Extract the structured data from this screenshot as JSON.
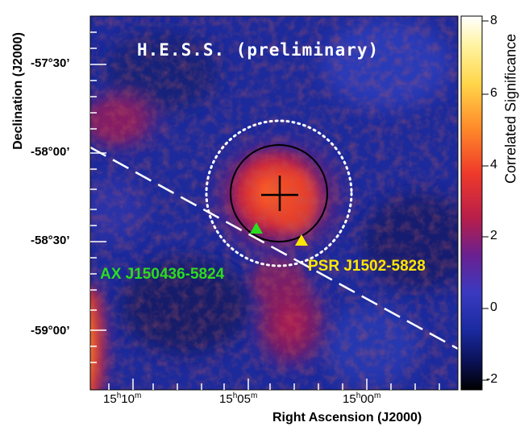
{
  "title": "H.E.S.S. (preliminary)",
  "y_axis_label": "Declination (J2000)",
  "x_axis_label": "Right Ascension (J2000)",
  "dec_ticks": [
    "-57°30’",
    "-58°00’",
    "-58°30’",
    "-59°00’"
  ],
  "ra_ticks": [
    {
      "h": "15",
      "hu": "h",
      "m": "10",
      "mu": "m"
    },
    {
      "h": "15",
      "hu": "h",
      "m": "05",
      "mu": "m"
    },
    {
      "h": "15",
      "hu": "h",
      "m": "00",
      "mu": "m"
    }
  ],
  "colorbar": {
    "label": "Correlated Significance",
    "ticks": [
      "8",
      "6",
      "4",
      "2",
      "0",
      "-2"
    ],
    "range": [
      -2.3,
      8
    ]
  },
  "sources": {
    "green": "AX J150436-5824",
    "yellow": "PSR J1502-5828"
  },
  "colors": {
    "green_marker": "#2bdc1f",
    "yellow_marker": "#ffe600",
    "circle_dotted": "#ffffff",
    "circle_solid": "#000000"
  }
}
